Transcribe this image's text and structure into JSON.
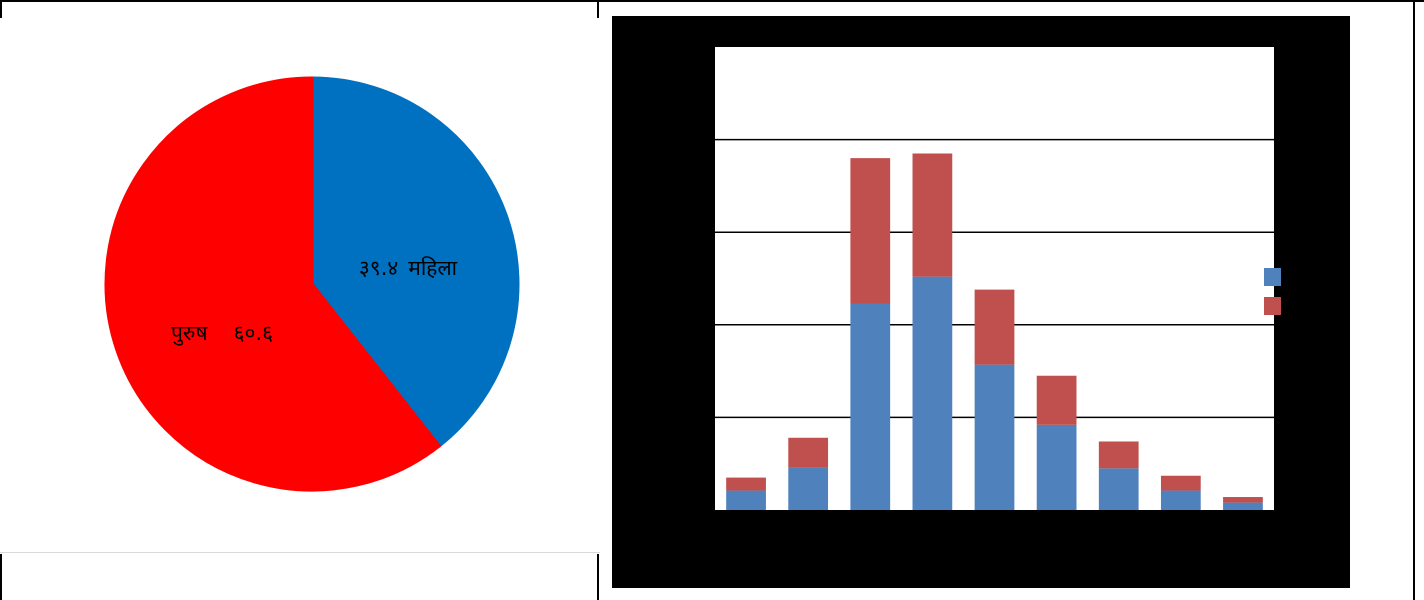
{
  "colors": {
    "pie_female": "#0070c0",
    "pie_male": "#ff0000",
    "bar_series_1": "#4f81bd",
    "bar_series_2": "#c0504d",
    "chart_background": "#000000",
    "plot_background": "#ffffff",
    "gridline": "#000000"
  },
  "chart_data": [
    {
      "type": "pie",
      "slices": [
        {
          "label": "महिला",
          "value_text": "३९.४",
          "value": 39.4
        },
        {
          "label": "पुरुष",
          "value_text": "६०.६",
          "value": 60.6
        }
      ]
    },
    {
      "type": "bar",
      "stacked": true,
      "grid": true,
      "legend_position": "right",
      "ylim": [
        0,
        5
      ],
      "categories_count": 9,
      "series": [
        {
          "values": [
            0.21,
            0.46,
            2.23,
            2.52,
            1.57,
            0.92,
            0.45,
            0.21,
            0.08
          ]
        },
        {
          "values": [
            0.14,
            0.32,
            1.57,
            1.33,
            0.81,
            0.53,
            0.29,
            0.16,
            0.06
          ]
        }
      ]
    }
  ]
}
